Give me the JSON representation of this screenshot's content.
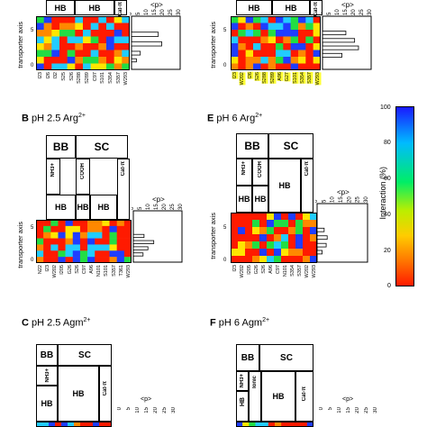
{
  "figure": {
    "colorbar": {
      "title": "Interaction (%)",
      "ticks": [
        "100",
        "80",
        "60",
        "40",
        "20",
        "0"
      ]
    },
    "panels": [
      {
        "id": "A",
        "label_letter": "",
        "label_text": "",
        "label_charge": "",
        "groups_top": [],
        "groups_bottom": [
          "HB",
          "HB",
          "Cat-π"
        ],
        "y_axis_label": "transporter axis",
        "y_ticks": [
          "5",
          "0"
        ],
        "p_label": "<p>",
        "p_ticks": [
          "0",
          "5",
          "10",
          "15",
          "20",
          "25",
          "30"
        ],
        "residues": [
          "I23",
          "I26",
          "I32",
          "S25",
          "S26",
          "S288",
          "S289",
          "C97",
          "S101",
          "S354",
          "S357",
          "W293"
        ],
        "highlighted_residues": []
      },
      {
        "id": "D",
        "label_letter": "",
        "label_text": "",
        "label_charge": "",
        "groups_top": [],
        "groups_bottom": [
          "HB",
          "HB",
          "Cat-π"
        ],
        "y_axis_label": "transporter axis",
        "y_ticks": [
          "5",
          "0"
        ],
        "p_label": "<p>",
        "p_ticks": [
          "0",
          "5",
          "10",
          "15",
          "20",
          "25",
          "30"
        ],
        "residues": [
          "I23",
          "W202",
          "I26",
          "S26",
          "S288",
          "S289",
          "A96",
          "G27",
          "S101",
          "S354",
          "S357",
          "W293"
        ],
        "highlighted_residues": [
          "I23",
          "W202",
          "I26",
          "S26",
          "S288",
          "S289",
          "A96",
          "G27",
          "S101",
          "S354",
          "S357",
          "W293"
        ]
      },
      {
        "id": "B",
        "label_letter": "B",
        "label_text": "pH 2.5 Arg",
        "label_charge": "2+",
        "groups_top": [
          "BB",
          "SC"
        ],
        "groups_sub": [
          "NH3+",
          "COOH"
        ],
        "groups_bottom": [
          "HB",
          "HB",
          "HB",
          "Cat-π"
        ],
        "y_axis_label": "transporter axis",
        "y_ticks": [
          "5",
          "0"
        ],
        "p_label": "<p>",
        "p_ticks": [
          "0",
          "5",
          "10",
          "15",
          "20",
          "25",
          "30"
        ],
        "residues": [
          "N22",
          "I23",
          "W202",
          "I205",
          "G26",
          "S26",
          "C97",
          "A96",
          "N101",
          "S101",
          "S357",
          "T361",
          "W293"
        ],
        "highlighted_residues": []
      },
      {
        "id": "E",
        "label_letter": "E",
        "label_text": "pH 6 Arg",
        "label_charge": "2+",
        "groups_top": [
          "BB",
          "SC"
        ],
        "groups_sub": [
          "NH3+",
          "COOH"
        ],
        "groups_bottom": [
          "HB",
          "HB",
          "HB",
          "Cat-π"
        ],
        "y_axis_label": "transporter axis",
        "y_ticks": [
          "5",
          "0"
        ],
        "p_label": "<p>",
        "p_ticks": [
          "0",
          "5",
          "10",
          "15",
          "20",
          "25",
          "30"
        ],
        "residues": [
          "I23",
          "W202",
          "I205",
          "G26",
          "S26",
          "A96",
          "C97",
          "N101",
          "S354",
          "S357",
          "W202",
          "W293"
        ],
        "highlighted_residues": []
      },
      {
        "id": "C",
        "label_letter": "C",
        "label_text": "pH 2.5 Agm",
        "label_charge": "2+",
        "groups_top": [
          "BB",
          "SC"
        ],
        "groups_sub": [
          "NH3+"
        ],
        "groups_bottom": [
          "HB",
          "HB",
          "Cat-π"
        ],
        "y_axis_label": "",
        "y_ticks": [],
        "p_label": "<p>",
        "p_ticks": [
          "0",
          "5",
          "10",
          "15",
          "20",
          "25",
          "30"
        ],
        "residues": [],
        "highlighted_residues": []
      },
      {
        "id": "F",
        "label_letter": "F",
        "label_text": "pH 6 Agm",
        "label_charge": "2+",
        "groups_top": [
          "BB",
          "SC"
        ],
        "groups_sub": [
          "NH3+"
        ],
        "groups_bottom": [
          "HB",
          "Ionic",
          "HB",
          "Cat-π"
        ],
        "y_axis_label": "",
        "y_ticks": [],
        "p_label": "<p>",
        "p_ticks": [
          "0",
          "5",
          "10",
          "15",
          "20",
          "25",
          "30"
        ],
        "residues": [],
        "highlighted_residues": []
      }
    ],
    "heatmap_colors": {
      "red": "#ff1a00",
      "orange": "#ff8800",
      "yellow": "#ffe600",
      "green": "#22dd44",
      "cyan": "#22ccff",
      "blue": "#1f3dff",
      "highlight": "#ffff33"
    }
  }
}
